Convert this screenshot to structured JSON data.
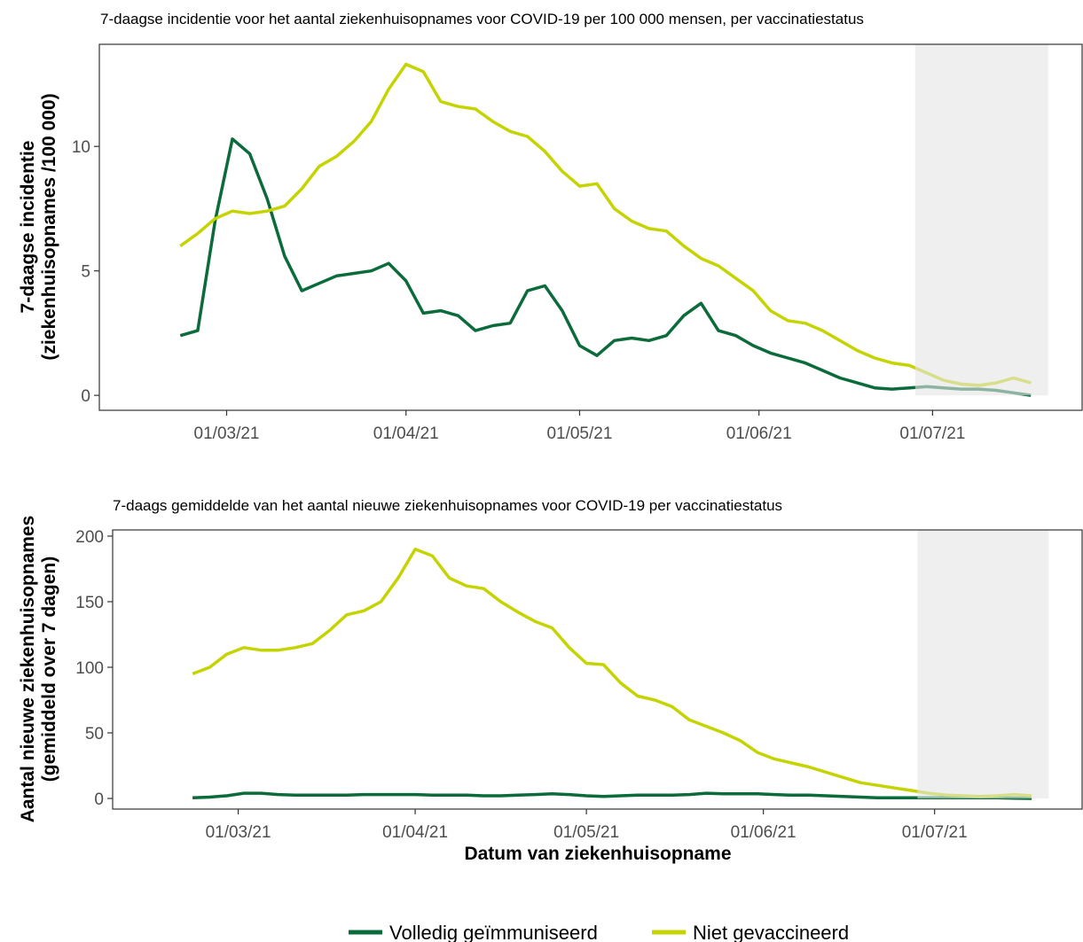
{
  "chart_data": [
    {
      "type": "line",
      "title": "7-daagse incidentie voor het aantal ziekenhuisopnames voor COVID-19 per 100 000 mensen, per vaccinatiestatus",
      "y_label": [
        "7-daagse incidentie",
        "(ziekenhuisopnames /100 000)"
      ],
      "x": [
        "2021-02-21",
        "2021-02-24",
        "2021-02-27",
        "2021-03-02",
        "2021-03-05",
        "2021-03-08",
        "2021-03-11",
        "2021-03-14",
        "2021-03-17",
        "2021-03-20",
        "2021-03-23",
        "2021-03-26",
        "2021-03-29",
        "2021-04-01",
        "2021-04-04",
        "2021-04-07",
        "2021-04-10",
        "2021-04-13",
        "2021-04-16",
        "2021-04-19",
        "2021-04-22",
        "2021-04-25",
        "2021-04-28",
        "2021-05-01",
        "2021-05-04",
        "2021-05-07",
        "2021-05-10",
        "2021-05-13",
        "2021-05-16",
        "2021-05-19",
        "2021-05-22",
        "2021-05-25",
        "2021-05-28",
        "2021-05-31",
        "2021-06-03",
        "2021-06-06",
        "2021-06-09",
        "2021-06-12",
        "2021-06-15",
        "2021-06-18",
        "2021-06-21",
        "2021-06-24",
        "2021-06-27",
        "2021-06-30",
        "2021-07-03",
        "2021-07-06",
        "2021-07-09",
        "2021-07-12",
        "2021-07-15",
        "2021-07-18"
      ],
      "series": [
        {
          "values": [
            2.4,
            2.6,
            7.0,
            10.3,
            9.7,
            7.9,
            5.6,
            4.2,
            4.5,
            4.8,
            4.9,
            5.0,
            5.3,
            4.6,
            3.3,
            3.4,
            3.2,
            2.6,
            2.8,
            2.9,
            4.2,
            4.4,
            3.4,
            2.0,
            1.6,
            2.2,
            2.3,
            2.2,
            2.4,
            3.2,
            3.7,
            2.6,
            2.4,
            2.0,
            1.7,
            1.5,
            1.3,
            1.0,
            0.7,
            0.5,
            0.3,
            0.25,
            0.3,
            0.35,
            0.3,
            0.25,
            0.25,
            0.2,
            0.1,
            0.0
          ]
        },
        {
          "values": [
            6.0,
            6.5,
            7.1,
            7.4,
            7.3,
            7.4,
            7.6,
            8.3,
            9.2,
            9.6,
            10.2,
            11.0,
            12.3,
            13.3,
            13.0,
            11.8,
            11.6,
            11.5,
            11.0,
            10.6,
            10.4,
            9.8,
            9.0,
            8.4,
            8.5,
            7.5,
            7.0,
            6.7,
            6.6,
            6.0,
            5.5,
            5.2,
            4.7,
            4.2,
            3.4,
            3.0,
            2.9,
            2.6,
            2.2,
            1.8,
            1.5,
            1.3,
            1.2,
            0.9,
            0.6,
            0.45,
            0.4,
            0.5,
            0.7,
            0.5
          ]
        }
      ],
      "xlim": [
        "2021-02-07",
        "2021-07-27"
      ],
      "xticks": [
        {
          "value": "2021-03-01",
          "label": "01/03/21"
        },
        {
          "value": "2021-04-01",
          "label": "01/04/21"
        },
        {
          "value": "2021-05-01",
          "label": "01/05/21"
        },
        {
          "value": "2021-06-01",
          "label": "01/06/21"
        },
        {
          "value": "2021-07-01",
          "label": "01/07/21"
        }
      ],
      "ylim": [
        -0.6,
        14.1
      ],
      "yticks": [
        0,
        5,
        10
      ],
      "shaded_range": [
        "2021-06-28",
        "2021-07-21"
      ]
    },
    {
      "type": "line",
      "title": "7-daags gemiddelde van het aantal nieuwe ziekenhuisopnames voor COVID-19 per vaccinatiestatus",
      "y_label": [
        "Aantal nieuwe ziekenhuisopnames",
        "(gemiddeld over 7 dagen)"
      ],
      "x_label": "Datum van ziekenhuisopname",
      "x": [
        "2021-02-21",
        "2021-02-24",
        "2021-02-27",
        "2021-03-02",
        "2021-03-05",
        "2021-03-08",
        "2021-03-11",
        "2021-03-14",
        "2021-03-17",
        "2021-03-20",
        "2021-03-23",
        "2021-03-26",
        "2021-03-29",
        "2021-04-01",
        "2021-04-04",
        "2021-04-07",
        "2021-04-10",
        "2021-04-13",
        "2021-04-16",
        "2021-04-19",
        "2021-04-22",
        "2021-04-25",
        "2021-04-28",
        "2021-05-01",
        "2021-05-04",
        "2021-05-07",
        "2021-05-10",
        "2021-05-13",
        "2021-05-16",
        "2021-05-19",
        "2021-05-22",
        "2021-05-25",
        "2021-05-28",
        "2021-05-31",
        "2021-06-03",
        "2021-06-06",
        "2021-06-09",
        "2021-06-12",
        "2021-06-15",
        "2021-06-18",
        "2021-06-21",
        "2021-06-24",
        "2021-06-27",
        "2021-06-30",
        "2021-07-03",
        "2021-07-06",
        "2021-07-09",
        "2021-07-12",
        "2021-07-15",
        "2021-07-18"
      ],
      "series": [
        {
          "values": [
            0.5,
            1,
            2,
            4,
            4,
            3,
            2.5,
            2.5,
            2.5,
            2.5,
            3,
            3,
            3,
            3,
            2.5,
            2.5,
            2.5,
            2,
            2,
            2.5,
            3,
            3.5,
            3,
            2,
            1.5,
            2,
            2.5,
            2.5,
            2.5,
            3,
            4,
            3.5,
            3.5,
            3.5,
            3,
            2.5,
            2.5,
            2,
            1.5,
            1,
            0.5,
            0.5,
            0.5,
            0.5,
            0.5,
            0.5,
            0.5,
            0.5,
            0.2,
            0
          ]
        },
        {
          "values": [
            95,
            100,
            110,
            115,
            113,
            113,
            115,
            118,
            128,
            140,
            143,
            150,
            168,
            190,
            185,
            168,
            162,
            160,
            150,
            142,
            135,
            130,
            115,
            103,
            102,
            88,
            78,
            75,
            70,
            60,
            55,
            50,
            44,
            35,
            30,
            27,
            24,
            20,
            16,
            12,
            10,
            8,
            6,
            4,
            2.5,
            2,
            1.5,
            2,
            3,
            2
          ]
        }
      ],
      "xlim": [
        "2021-02-07",
        "2021-07-27"
      ],
      "xticks": [
        {
          "value": "2021-03-01",
          "label": "01/03/21"
        },
        {
          "value": "2021-04-01",
          "label": "01/04/21"
        },
        {
          "value": "2021-05-01",
          "label": "01/05/21"
        },
        {
          "value": "2021-06-01",
          "label": "01/06/21"
        },
        {
          "value": "2021-07-01",
          "label": "01/07/21"
        }
      ],
      "ylim": [
        -8.1,
        204.7
      ],
      "yticks": [
        0,
        50,
        100,
        150,
        200
      ],
      "shaded_range": [
        "2021-06-28",
        "2021-07-21"
      ]
    }
  ],
  "legend": [
    {
      "name": "Volledig geïmmuniseerd",
      "color": "#0b6b3a"
    },
    {
      "name": "Niet gevaccineerd",
      "color": "#c5d400"
    }
  ]
}
